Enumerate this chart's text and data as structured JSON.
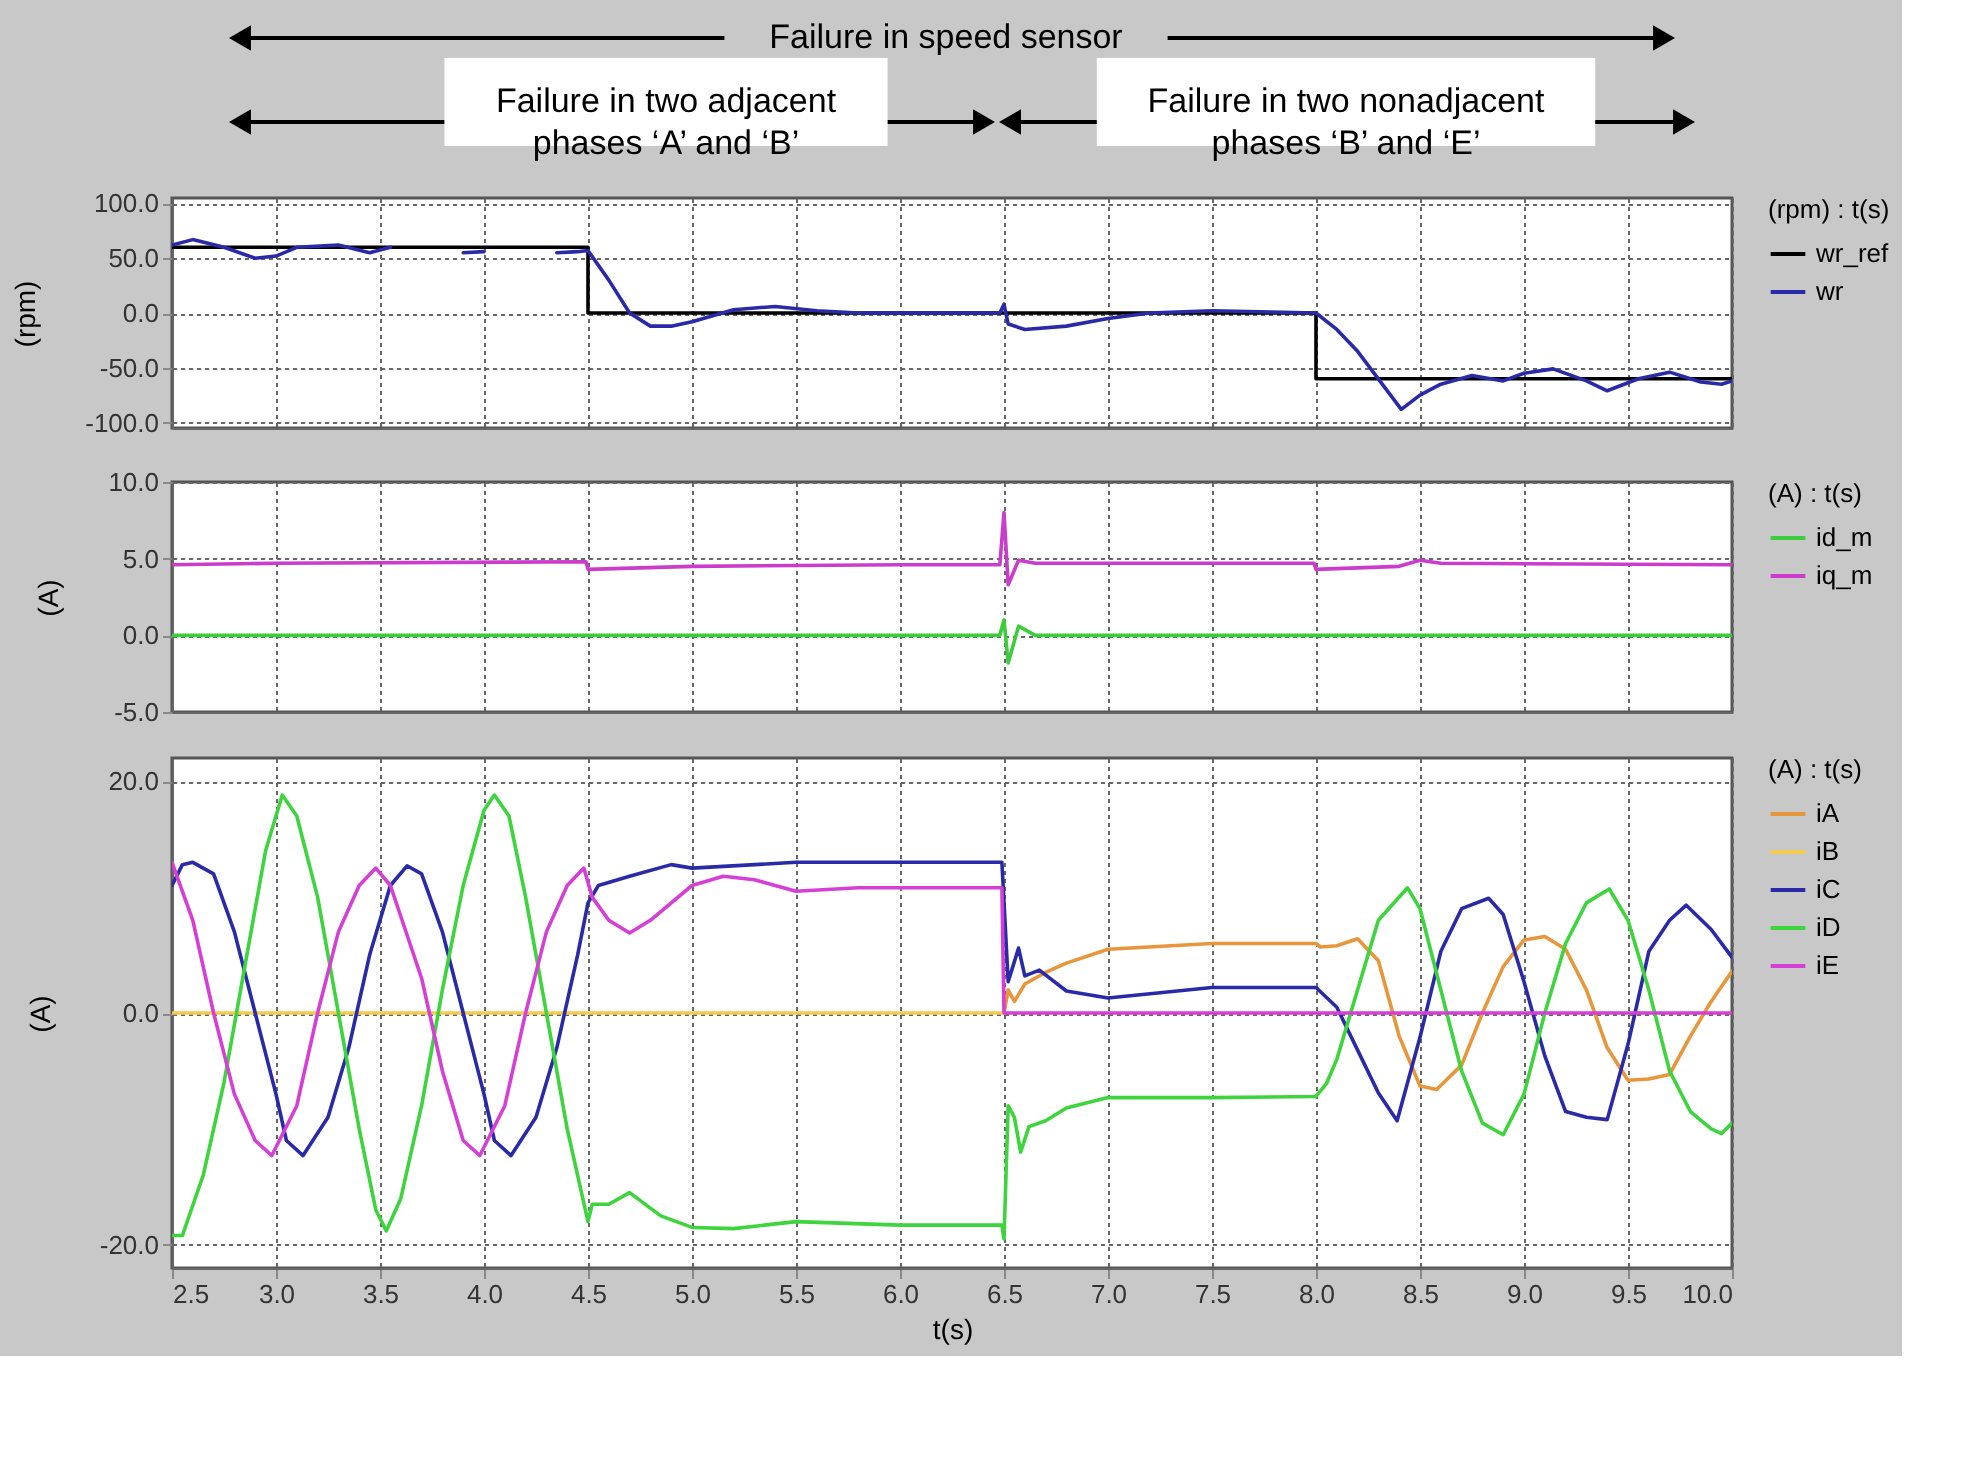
{
  "chart_data": [
    {
      "type": "line",
      "ylabel": "(rpm)",
      "legend_title": "(rpm) : t(s)",
      "legend": "right",
      "grid": true,
      "tick_labels": "y",
      "annotations": [
        "Failure in speed sensor",
        "Failure in two adjacent\nphases  ‘A’ and ‘B’",
        "Failure in two nonadjacent\nphases ‘B’ and ‘E’"
      ],
      "xlim": [
        2.5,
        10.0
      ],
      "xticks": [
        2.5,
        3,
        3.5,
        4,
        4.5,
        5,
        5.5,
        6,
        6.5,
        7,
        7.5,
        8,
        8.5,
        9,
        9.5,
        10
      ],
      "ylim": [
        -105,
        105
      ],
      "yticks": [
        {
          "value": -100,
          "label": "-100.0"
        },
        {
          "value": -50,
          "label": "-50.0"
        },
        {
          "value": 0,
          "label": "0.0"
        },
        {
          "value": 50,
          "label": "50.0"
        },
        {
          "value": 100,
          "label": "100.0"
        }
      ],
      "series": [
        {
          "name": "wr_ref",
          "type": "step",
          "color": "#000000",
          "x": [
            2.5,
            4.5,
            8.0,
            10.0
          ],
          "values": [
            60,
            0,
            -60,
            -60
          ]
        },
        {
          "name": "wr",
          "color": "#2a2aa8",
          "x": [
            2.5,
            2.6,
            2.75,
            2.9,
            3.0,
            3.1,
            3.3,
            3.45,
            3.55,
            3.6,
            3.9,
            4.0,
            4.05,
            4.35,
            4.45,
            4.5,
            4.6,
            4.7,
            4.8,
            4.9,
            5.0,
            5.2,
            5.4,
            5.6,
            5.8,
            6.48,
            6.5,
            6.52,
            6.6,
            6.8,
            7.0,
            7.2,
            7.5,
            8.0,
            8.1,
            8.2,
            8.41,
            8.5,
            8.6,
            8.75,
            8.9,
            9.0,
            9.14,
            9.3,
            9.4,
            9.55,
            9.7,
            9.85,
            9.95,
            10.0
          ],
          "values": [
            62,
            67,
            60,
            50,
            52,
            60,
            62,
            55,
            60,
            null,
            55,
            56,
            null,
            55,
            56,
            57,
            30,
            0,
            -12,
            -12,
            -8,
            3,
            6,
            2,
            0,
            0,
            8,
            -10,
            -15,
            -12,
            -5,
            0,
            2,
            0,
            -15,
            -35,
            -88,
            -75,
            -65,
            -57,
            -62,
            -55,
            -51,
            -62,
            -71,
            -60,
            -54,
            -63,
            -65,
            -62
          ]
        }
      ]
    },
    {
      "type": "line",
      "ylabel": "(A)",
      "legend_title": "(A) : t(s)",
      "legend": "right",
      "grid": true,
      "tick_labels": "y",
      "xlim": [
        2.5,
        10.0
      ],
      "xticks": [
        2.5,
        3,
        3.5,
        4,
        4.5,
        5,
        5.5,
        6,
        6.5,
        7,
        7.5,
        8,
        8.5,
        9,
        9.5,
        10
      ],
      "ylim": [
        -5,
        10
      ],
      "yticks": [
        {
          "value": -5,
          "label": "-5.0"
        },
        {
          "value": 0,
          "label": "0.0"
        },
        {
          "value": 5,
          "label": "5.0"
        },
        {
          "value": 10,
          "label": "10.0"
        }
      ],
      "series": [
        {
          "name": "id_m",
          "color": "#3ccc3c",
          "x": [
            2.5,
            6.48,
            6.5,
            6.52,
            6.57,
            6.65,
            10.0
          ],
          "values": [
            0,
            0,
            1.0,
            -1.8,
            0.6,
            0,
            0
          ]
        },
        {
          "name": "iq_m",
          "color": "#cc3ccc",
          "x": [
            2.5,
            3.0,
            4.49,
            4.5,
            5.0,
            6.0,
            6.48,
            6.5,
            6.52,
            6.57,
            6.65,
            7.99,
            8.0,
            8.4,
            8.5,
            8.6,
            10.0
          ],
          "values": [
            4.6,
            4.7,
            4.8,
            4.3,
            4.5,
            4.6,
            4.6,
            8.0,
            3.3,
            4.9,
            4.7,
            4.7,
            4.3,
            4.5,
            4.9,
            4.7,
            4.6
          ]
        }
      ]
    },
    {
      "type": "line",
      "ylabel": "(A)",
      "xlabel": "t(s)",
      "legend_title": "(A) : t(s)",
      "legend": "right",
      "grid": true,
      "xlim": [
        2.5,
        10.0
      ],
      "xticks": [
        2.5,
        {
          "value": 3,
          "label": "3.0"
        },
        3.5,
        {
          "value": 4,
          "label": "4.0"
        },
        4.5,
        {
          "value": 5,
          "label": "5.0"
        },
        5.5,
        {
          "value": 6,
          "label": "6.0"
        },
        6.5,
        {
          "value": 7,
          "label": "7.0"
        },
        7.5,
        {
          "value": 8,
          "label": "8.0"
        },
        8.5,
        {
          "value": 9,
          "label": "9.0"
        },
        9.5,
        {
          "value": 10,
          "label": "10.0"
        }
      ],
      "ylim": [
        -22,
        22
      ],
      "yticks": [
        {
          "value": -20,
          "label": "-20.0"
        },
        {
          "value": 0,
          "label": "0.0"
        },
        {
          "value": 20,
          "label": "20.0"
        }
      ],
      "series": [
        {
          "name": "iA",
          "color": "#e8963c",
          "x": [
            6.5,
            6.52,
            6.55,
            6.6,
            6.7,
            6.8,
            7.0,
            7.5,
            8.0,
            8.02,
            8.1,
            8.2,
            8.3,
            8.4,
            8.5,
            8.58,
            8.7,
            8.8,
            8.9,
            9.0,
            9.1,
            9.2,
            9.3,
            9.4,
            9.5,
            9.6,
            9.7,
            9.8,
            9.9,
            10.0
          ],
          "values": [
            0,
            2,
            1,
            2.5,
            3.5,
            4.3,
            5.5,
            6,
            6,
            5.7,
            5.8,
            6.4,
            4.5,
            -2,
            -6.3,
            -6.6,
            -4.5,
            0,
            4,
            6.3,
            6.6,
            5.5,
            2,
            -3,
            -5.8,
            -5.7,
            -5.3,
            -2,
            1,
            3.6
          ]
        },
        {
          "name": "iB",
          "color": "#f2cc50",
          "x": [
            2.5,
            6.5
          ],
          "values": [
            0,
            0
          ]
        },
        {
          "name": "iC",
          "color": "#2a2aa8",
          "x": [
            2.5,
            2.55,
            2.6,
            2.7,
            2.8,
            2.9,
            3.0,
            3.05,
            3.13,
            3.25,
            3.35,
            3.45,
            3.55,
            3.63,
            3.7,
            3.8,
            3.9,
            4.0,
            4.05,
            4.13,
            4.25,
            4.35,
            4.45,
            4.5,
            4.55,
            4.7,
            4.9,
            5.0,
            5.5,
            6.0,
            6.49,
            6.52,
            6.57,
            6.6,
            6.67,
            6.8,
            7.0,
            7.5,
            8.0,
            8.1,
            8.2,
            8.3,
            8.39,
            8.5,
            8.6,
            8.7,
            8.83,
            8.9,
            9.0,
            9.1,
            9.2,
            9.3,
            9.4,
            9.5,
            9.6,
            9.7,
            9.78,
            9.9,
            10.0
          ],
          "values": [
            11,
            12.8,
            13,
            12,
            7,
            0,
            -7,
            -11,
            -12.3,
            -9,
            -3,
            5,
            11,
            12.7,
            12,
            7,
            0,
            -7,
            -11,
            -12.3,
            -9,
            -3,
            5,
            9.5,
            11,
            11.8,
            12.8,
            12.5,
            13,
            13,
            13,
            2.7,
            5.6,
            3.2,
            3.7,
            1.9,
            1.3,
            2.2,
            2.2,
            0.5,
            -3.2,
            -6.9,
            -9.3,
            -2.1,
            5.3,
            9,
            9.9,
            8.5,
            2.7,
            -3.7,
            -8.5,
            -9,
            -9.2,
            -2.7,
            5.3,
            8,
            9.3,
            7.2,
            4.8
          ]
        },
        {
          "name": "iD",
          "color": "#3ed43e",
          "x": [
            2.5,
            2.55,
            2.65,
            2.75,
            2.85,
            2.95,
            3.03,
            3.1,
            3.2,
            3.3,
            3.4,
            3.48,
            3.53,
            3.6,
            3.7,
            3.8,
            3.9,
            4.0,
            4.05,
            4.12,
            4.2,
            4.3,
            4.4,
            4.5,
            4.52,
            4.6,
            4.7,
            4.85,
            5.0,
            5.2,
            5.5,
            6.0,
            6.49,
            6.5,
            6.52,
            6.55,
            6.58,
            6.62,
            6.7,
            6.8,
            7.0,
            7.5,
            8.0,
            8.05,
            8.1,
            8.2,
            8.3,
            8.44,
            8.5,
            8.6,
            8.7,
            8.8,
            8.9,
            9.0,
            9.1,
            9.2,
            9.3,
            9.41,
            9.5,
            9.6,
            9.7,
            9.8,
            9.9,
            9.95,
            10.0
          ],
          "values": [
            -19.2,
            -19.2,
            -14,
            -6,
            4,
            14,
            18.8,
            17,
            10,
            0,
            -10,
            -17,
            -18.8,
            -16,
            -8,
            2,
            11,
            17.5,
            18.8,
            17,
            10,
            0,
            -10,
            -18,
            -16.5,
            -16.5,
            -15.5,
            -17.5,
            -18.5,
            -18.6,
            -18,
            -18.3,
            -18.3,
            -19.5,
            -8,
            -9,
            -12,
            -9.8,
            -9.3,
            -8.2,
            -7.3,
            -7.3,
            -7.2,
            -6.1,
            -4,
            2,
            8,
            10.8,
            9,
            2,
            -5,
            -9.5,
            -10.5,
            -7,
            0,
            6,
            9.5,
            10.7,
            8,
            2,
            -5,
            -8.5,
            -10,
            -10.4,
            -9.5
          ]
        },
        {
          "name": "iE",
          "color": "#d63fd6",
          "x": [
            2.5,
            2.6,
            2.7,
            2.8,
            2.9,
            2.98,
            3.1,
            3.2,
            3.3,
            3.4,
            3.48,
            3.55,
            3.7,
            3.8,
            3.9,
            3.98,
            4.1,
            4.2,
            4.3,
            4.4,
            4.48,
            4.52,
            4.6,
            4.7,
            4.8,
            5.0,
            5.15,
            5.3,
            5.5,
            5.8,
            6.49,
            6.5,
            10.0
          ],
          "values": [
            13,
            8,
            0,
            -7,
            -11,
            -12.3,
            -8,
            0,
            7,
            11,
            12.5,
            11,
            3,
            -5,
            -11,
            -12.3,
            -8,
            0,
            7,
            11,
            12.5,
            10,
            8,
            6.9,
            8,
            11,
            11.8,
            11.5,
            10.5,
            10.8,
            10.8,
            0,
            0
          ]
        }
      ]
    }
  ]
}
